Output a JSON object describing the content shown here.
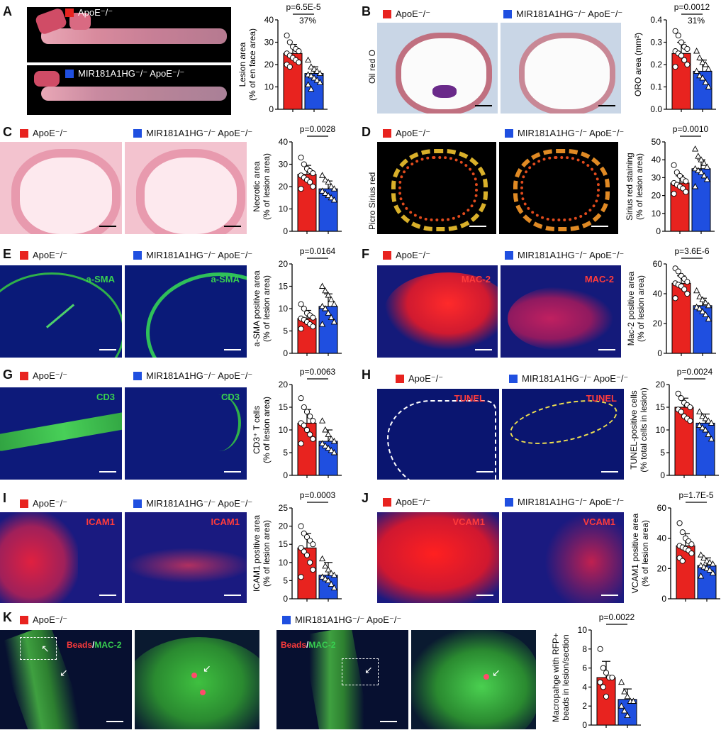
{
  "colors": {
    "apoe": "#e8231f",
    "mir": "#1f4fe0"
  },
  "panels": {
    "A": {
      "letter": "A",
      "leg1": "ApoE⁻/⁻",
      "leg2": "MIR181A1HG⁻/⁻ ApoE⁻/⁻"
    },
    "B": {
      "letter": "B",
      "leg1": "ApoE⁻/⁻",
      "leg2": "MIR181A1HG⁻/⁻ ApoE⁻/⁻",
      "side": "Oil red O"
    },
    "C": {
      "letter": "C",
      "leg1": "ApoE⁻/⁻",
      "leg2": "MIR181A1HG⁻/⁻ ApoE⁻/⁻"
    },
    "D": {
      "letter": "D",
      "leg1": "ApoE⁻/⁻",
      "leg2": "MIR181A1HG⁻/⁻ ApoE⁻/⁻",
      "side": "Picro Sirius red"
    },
    "E": {
      "letter": "E",
      "leg1": "ApoE⁻/⁻",
      "leg2": "MIR181A1HG⁻/⁻ ApoE⁻/⁻",
      "stain": "a-SMA"
    },
    "F": {
      "letter": "F",
      "leg1": "ApoE⁻/⁻",
      "leg2": "MIR181A1HG⁻/⁻ ApoE⁻/⁻",
      "stain": "MAC-2"
    },
    "G": {
      "letter": "G",
      "leg1": "ApoE⁻/⁻",
      "leg2": "MIR181A1HG⁻/⁻ ApoE⁻/⁻",
      "stain": "CD3"
    },
    "H": {
      "letter": "H",
      "leg1": "ApoE⁻/⁻",
      "leg2": "MIR181A1HG⁻/⁻ ApoE⁻/⁻",
      "stain": "TUNEL"
    },
    "I": {
      "letter": "I",
      "leg1": "ApoE⁻/⁻",
      "leg2": "MIR181A1HG⁻/⁻ ApoE⁻/⁻",
      "stain": "ICAM1"
    },
    "J": {
      "letter": "J",
      "leg1": "ApoE⁻/⁻",
      "leg2": "MIR181A1HG⁻/⁻ ApoE⁻/⁻",
      "stain": "VCAM1"
    },
    "K": {
      "letter": "K",
      "leg1": "ApoE⁻/⁻",
      "leg2": "MIR181A1HG⁻/⁻ ApoE⁻/⁻",
      "stain_red": "Beads",
      "stain_sep": "/",
      "stain_green": "MAC-2"
    }
  },
  "chart_data": [
    {
      "id": "A",
      "type": "bar",
      "categories": [
        "ApoE-/-",
        "MIR181A1HG-/- ApoE-/-"
      ],
      "values": [
        25,
        16
      ],
      "ylabel": "Lesion area",
      "ylabel2": "(% of en face area)",
      "ylim": [
        0,
        40
      ],
      "yticks": [
        0,
        10,
        20,
        30,
        40
      ],
      "pvalue": "p=6.5E-5",
      "note": "37%",
      "points": [
        [
          33,
          30,
          28,
          27,
          26,
          25,
          24,
          23,
          22,
          21,
          20,
          19
        ],
        [
          22,
          19,
          18,
          17,
          16,
          15.5,
          15,
          14,
          13,
          12,
          11,
          9
        ]
      ],
      "err": [
        4,
        3
      ]
    },
    {
      "id": "B",
      "type": "bar",
      "categories": [
        "ApoE-/-",
        "MIR181A1HG-/- ApoE-/-"
      ],
      "values": [
        0.25,
        0.17
      ],
      "ylabel": "ORO area (mm²)",
      "ylabel2": "",
      "ylim": [
        0,
        0.4
      ],
      "yticks": [
        0.0,
        0.1,
        0.2,
        0.3,
        0.4
      ],
      "pvalue": "p=0.0012",
      "note": "31%",
      "points": [
        [
          0.35,
          0.33,
          0.3,
          0.28,
          0.27,
          0.26,
          0.25,
          0.24,
          0.22,
          0.2,
          0.19
        ],
        [
          0.26,
          0.23,
          0.21,
          0.2,
          0.18,
          0.17,
          0.15,
          0.14,
          0.12,
          0.1
        ]
      ],
      "err": [
        0.05,
        0.05
      ]
    },
    {
      "id": "C",
      "type": "bar",
      "categories": [
        "ApoE-/-",
        "MIR181A1HG-/- ApoE-/-"
      ],
      "values": [
        25.5,
        19
      ],
      "ylabel": "Necrotic area",
      "ylabel2": "(% of lesion area)",
      "ylim": [
        0,
        40
      ],
      "yticks": [
        0,
        10,
        20,
        30,
        40
      ],
      "pvalue": "p=0.0028",
      "note": "",
      "points": [
        [
          33,
          30,
          28,
          27,
          26,
          25,
          24,
          23,
          22,
          20,
          19
        ],
        [
          25,
          23,
          22,
          20,
          19,
          18,
          17,
          16,
          15,
          14
        ]
      ],
      "err": [
        4,
        3.5
      ]
    },
    {
      "id": "D",
      "type": "bar",
      "categories": [
        "ApoE-/-",
        "MIR181A1HG-/- ApoE-/-"
      ],
      "values": [
        27,
        35
      ],
      "ylabel": "Sirius red staining",
      "ylabel2": "(% of lesion area)",
      "ylim": [
        0,
        50
      ],
      "yticks": [
        0,
        10,
        20,
        30,
        40,
        50
      ],
      "pvalue": "p=0.0010",
      "note": "",
      "points": [
        [
          37,
          33,
          31,
          29,
          28,
          27,
          26,
          25,
          24,
          22,
          21
        ],
        [
          46,
          42,
          40,
          38,
          36,
          35,
          34,
          33,
          31,
          29,
          25
        ]
      ],
      "err": [
        4,
        5
      ]
    },
    {
      "id": "E",
      "type": "bar",
      "categories": [
        "ApoE-/-",
        "MIR181A1HG-/- ApoE-/-"
      ],
      "values": [
        7.8,
        10.5
      ],
      "ylabel": "a-SMA positive area",
      "ylabel2": "(% of lesion area)",
      "ylim": [
        0,
        20
      ],
      "yticks": [
        0,
        5,
        10,
        15,
        20
      ],
      "pvalue": "p=0.0164",
      "note": "",
      "points": [
        [
          11,
          10,
          9,
          8.5,
          8,
          7.8,
          7.5,
          7,
          6.5,
          6,
          5.5
        ],
        [
          15,
          14,
          13,
          12,
          11,
          10.5,
          10,
          9,
          8,
          7,
          6.5
        ]
      ],
      "err": [
        1.8,
        2.8
      ]
    },
    {
      "id": "F",
      "type": "bar",
      "categories": [
        "ApoE-/-",
        "MIR181A1HG-/- ApoE-/-"
      ],
      "values": [
        47,
        32
      ],
      "ylabel": "Mac-2 positive area",
      "ylabel2": "(% of lesion area)",
      "ylim": [
        0,
        60
      ],
      "yticks": [
        0,
        20,
        40,
        60
      ],
      "pvalue": "p=3.6E-6",
      "note": "",
      "points": [
        [
          57,
          55,
          52,
          50,
          48,
          47,
          46,
          45,
          43,
          40,
          37
        ],
        [
          42,
          38,
          36,
          34,
          32,
          31,
          30,
          28,
          26,
          23
        ]
      ],
      "err": [
        5,
        5
      ]
    },
    {
      "id": "G",
      "type": "bar",
      "categories": [
        "ApoE-/-",
        "MIR181A1HG-/- ApoE-/-"
      ],
      "values": [
        11.5,
        7.5
      ],
      "ylabel": "CD3⁺ T cells",
      "ylabel2": "(% of lesion area)",
      "ylim": [
        0,
        20
      ],
      "yticks": [
        0,
        5,
        10,
        15,
        20
      ],
      "pvalue": "p=0.0063",
      "note": "",
      "points": [
        [
          17,
          15,
          14,
          13,
          12,
          11.5,
          11,
          10,
          9,
          8,
          7
        ],
        [
          12,
          10,
          9,
          8,
          7.5,
          7,
          6.5,
          6,
          5.5,
          5
        ]
      ],
      "err": [
        3,
        2.5
      ]
    },
    {
      "id": "H",
      "type": "bar",
      "categories": [
        "ApoE-/-",
        "MIR181A1HG-/- ApoE-/-"
      ],
      "values": [
        15,
        11.5
      ],
      "ylabel": "TUNEL-positive cells",
      "ylabel2": "(% total cells in lesion)",
      "ylim": [
        0,
        20
      ],
      "yticks": [
        0,
        5,
        10,
        15,
        20
      ],
      "pvalue": "p=0.0024",
      "note": "",
      "points": [
        [
          18,
          17,
          16,
          15.5,
          15,
          14.5,
          14,
          13,
          12.5,
          12
        ],
        [
          14,
          13,
          12.5,
          12,
          11.5,
          11,
          10.5,
          10,
          9,
          8
        ]
      ],
      "err": [
        2,
        2
      ]
    },
    {
      "id": "I",
      "type": "bar",
      "categories": [
        "ApoE-/-",
        "MIR181A1HG-/- ApoE-/-"
      ],
      "values": [
        14,
        6.5
      ],
      "ylabel": "ICAM1 positive area",
      "ylabel2": "(% of lesion area)",
      "ylim": [
        0,
        25
      ],
      "yticks": [
        0,
        5,
        10,
        15,
        20,
        25
      ],
      "pvalue": "p=0.0003",
      "note": "",
      "points": [
        [
          20,
          18,
          17,
          16,
          15,
          14,
          13,
          12,
          10,
          8,
          6
        ],
        [
          11,
          9,
          8,
          7,
          6.5,
          6,
          5.5,
          5,
          4,
          3
        ]
      ],
      "err": [
        4,
        3.5
      ]
    },
    {
      "id": "J",
      "type": "bar",
      "categories": [
        "ApoE-/-",
        "MIR181A1HG-/- ApoE-/-"
      ],
      "values": [
        35,
        22
      ],
      "ylabel": "VCAM1 positive area",
      "ylabel2": "(% of lesion area)",
      "ylim": [
        0,
        60
      ],
      "yticks": [
        0,
        20,
        40,
        60
      ],
      "pvalue": "p=1.7E-5",
      "note": "",
      "points": [
        [
          50,
          44,
          40,
          38,
          36,
          35,
          34,
          33,
          32,
          30,
          27,
          25
        ],
        [
          29,
          27,
          25,
          24,
          23,
          22,
          21,
          20,
          19,
          17,
          15
        ]
      ],
      "err": [
        8,
        5
      ]
    },
    {
      "id": "K",
      "type": "bar",
      "categories": [
        "ApoE-/-",
        "MIR181A1HG-/- ApoE-/-"
      ],
      "values": [
        5,
        2.7
      ],
      "ylabel": "Macropahge with RFP+",
      "ylabel2": "beads in lesion/section",
      "ylim": [
        0,
        10
      ],
      "yticks": [
        0,
        2,
        4,
        6,
        8,
        10
      ],
      "pvalue": "p=0.0022",
      "note": "",
      "points": [
        [
          8,
          6,
          5.5,
          5,
          5,
          4.5,
          4,
          3
        ],
        [
          4.5,
          3.5,
          3,
          2.5,
          2.5,
          2,
          1.5,
          1
        ]
      ],
      "err": [
        1.7,
        1.1
      ]
    }
  ]
}
